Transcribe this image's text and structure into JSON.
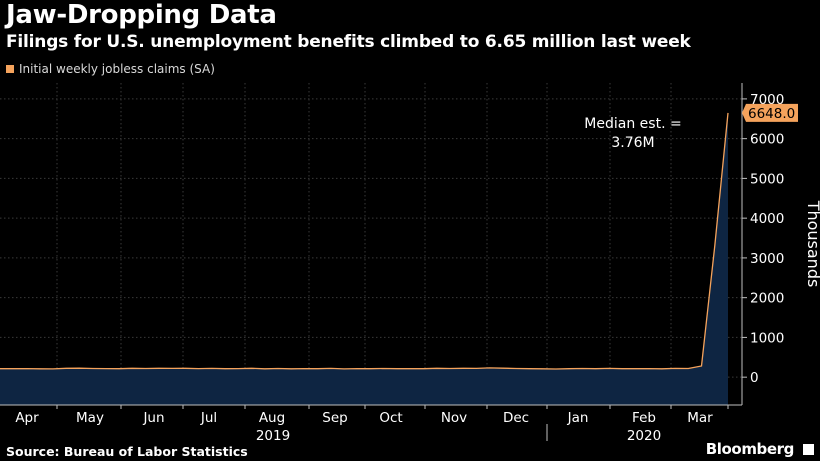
{
  "header": {
    "title": "Jaw-Dropping Data",
    "subtitle": "Filings for U.S. unemployment benefits climbed to 6.65 million last week"
  },
  "footer": {
    "source": "Source: Bureau of Labor Statistics",
    "brand": "Bloomberg"
  },
  "colors": {
    "background": "#000000",
    "line": "#f5a35c",
    "area": "#0e2542",
    "grid": "#3a3a3a",
    "text": "#ffffff"
  },
  "chart_data": {
    "type": "area",
    "series": [
      {
        "name": "Initial weekly jobless claims (SA)",
        "values": [
          212,
          214,
          216,
          211,
          208,
          222,
          226,
          217,
          215,
          213,
          224,
          219,
          224,
          220,
          222,
          216,
          221,
          212,
          216,
          222,
          210,
          218,
          210,
          216,
          214,
          220,
          208,
          216,
          214,
          218,
          212,
          212,
          212,
          222,
          218,
          223,
          220,
          234,
          226,
          218,
          214,
          210,
          205,
          212,
          219,
          212,
          221,
          214,
          213,
          216,
          211,
          220,
          219,
          282,
          3307,
          6648
        ]
      }
    ],
    "x_labels": [
      "Apr",
      "May",
      "Jun",
      "Jul",
      "Aug",
      "Sep",
      "Oct",
      "Nov",
      "Dec",
      "Jan",
      "Feb",
      "Mar"
    ],
    "year_labels": [
      "2019",
      "2020"
    ],
    "ylabel": "Thousands",
    "ylim": [
      -700,
      7400
    ],
    "yticks": [
      0,
      1000,
      2000,
      3000,
      4000,
      5000,
      6000,
      7000
    ],
    "last_value_label": "6648.0",
    "annotation": "Median est. = 3.76M",
    "grid": true,
    "legend_position": "top-left"
  }
}
